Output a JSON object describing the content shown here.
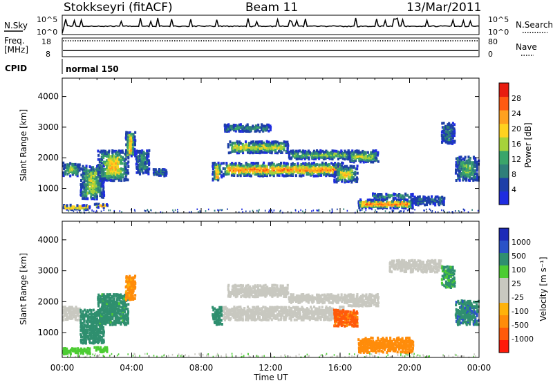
{
  "header": {
    "station": "Stokkseyri (fitACF)",
    "beam": "Beam 11",
    "date": "13/Mar/2011"
  },
  "status_panels": {
    "nsky_label": "N.Sky",
    "nsky_ticks": [
      "10^5",
      "10^0"
    ],
    "nsearch_label": "N.Search",
    "nsearch_ticks": [
      "10^5",
      "10^0"
    ],
    "freq_label": "Freq.",
    "freq_unit": "[MHz]",
    "freq_ticks": [
      "18",
      "8"
    ],
    "nave_label": "Nave",
    "nave_ticks": [
      "80",
      "0"
    ],
    "cpid_label": "CPID",
    "cpid_value": "normal 150"
  },
  "colors": {
    "power": [
      "#1f2de0",
      "#1d3fa8",
      "#2f7f7a",
      "#3aa56a",
      "#a6d23a",
      "#ffd21f",
      "#ffa11f",
      "#ff5a12",
      "#e81c10"
    ],
    "velocity": [
      "#ff1a0a",
      "#ff5a0a",
      "#ff8c0a",
      "#ffb20a",
      "#c8c8c0",
      "#c8c8c0",
      "#4ccc33",
      "#2f8f6f",
      "#2a52c8",
      "#1c2ab8"
    ]
  },
  "chart_data": [
    {
      "type": "heatmap",
      "panel": "power",
      "xlabel": "Time UT",
      "ylabel": "Slant Range [km]",
      "x_tick_labels": [
        "00:00",
        "04:00",
        "08:00",
        "12:00",
        "16:00",
        "20:00",
        "00:00"
      ],
      "xlim": [
        0,
        24
      ],
      "ylim": [
        200,
        4600
      ],
      "y_ticks": [
        1000,
        2000,
        3000,
        4000
      ],
      "colorbar_label": "Power [dB]",
      "colorbar_ticks": [
        "28",
        "24",
        "20",
        "16",
        "12",
        "8",
        "4"
      ],
      "colorbar_range": [
        0,
        32
      ],
      "regions": [
        {
          "t": [
            0.0,
            1.6
          ],
          "r": [
            350,
            520
          ],
          "v": 26
        },
        {
          "t": [
            1.8,
            2.6
          ],
          "r": [
            420,
            560
          ],
          "v": 22
        },
        {
          "t": [
            0.0,
            1.0
          ],
          "r": [
            1450,
            1900
          ],
          "v": 18
        },
        {
          "t": [
            1.0,
            2.4
          ],
          "r": [
            700,
            1800
          ],
          "v": 16
        },
        {
          "t": [
            2.0,
            3.8
          ],
          "r": [
            1300,
            2300
          ],
          "v": 20
        },
        {
          "t": [
            3.6,
            4.2
          ],
          "r": [
            2100,
            2900
          ],
          "v": 22
        },
        {
          "t": [
            4.2,
            5.0
          ],
          "r": [
            1500,
            2300
          ],
          "v": 10
        },
        {
          "t": [
            5.2,
            6.0
          ],
          "r": [
            1450,
            1700
          ],
          "v": 8
        },
        {
          "t": [
            8.6,
            9.2
          ],
          "r": [
            1300,
            1900
          ],
          "v": 22
        },
        {
          "t": [
            9.2,
            16.2
          ],
          "r": [
            1450,
            1900
          ],
          "v": 24
        },
        {
          "t": [
            9.5,
            13.0
          ],
          "r": [
            2200,
            2600
          ],
          "v": 18
        },
        {
          "t": [
            9.3,
            12.0
          ],
          "r": [
            2900,
            3150
          ],
          "v": 10
        },
        {
          "t": [
            13.0,
            16.6
          ],
          "r": [
            2000,
            2300
          ],
          "v": 14
        },
        {
          "t": [
            15.6,
            17.0
          ],
          "r": [
            1250,
            1800
          ],
          "v": 20
        },
        {
          "t": [
            16.4,
            18.2
          ],
          "r": [
            1900,
            2300
          ],
          "v": 16
        },
        {
          "t": [
            17.0,
            20.2
          ],
          "r": [
            400,
            700
          ],
          "v": 26
        },
        {
          "t": [
            17.8,
            20.2
          ],
          "r": [
            700,
            900
          ],
          "v": 12
        },
        {
          "t": [
            20.2,
            22.0
          ],
          "r": [
            500,
            800
          ],
          "v": 8
        },
        {
          "t": [
            21.8,
            22.6
          ],
          "r": [
            2500,
            3200
          ],
          "v": 8
        },
        {
          "t": [
            22.6,
            24.0
          ],
          "r": [
            1300,
            2100
          ],
          "v": 14
        }
      ]
    },
    {
      "type": "heatmap",
      "panel": "velocity",
      "xlabel": "Time UT",
      "ylabel": "Slant Range [km]",
      "x_tick_labels": [
        "00:00",
        "04:00",
        "08:00",
        "12:00",
        "16:00",
        "20:00",
        "00:00"
      ],
      "xlim": [
        0,
        24
      ],
      "ylim": [
        200,
        4600
      ],
      "y_ticks": [
        1000,
        2000,
        3000,
        4000
      ],
      "colorbar_label": "Velocity [m s⁻¹]",
      "colorbar_ticks": [
        "1000",
        "500",
        "100",
        "25",
        "-25",
        "-100",
        "-500",
        "-1000"
      ],
      "regions": [
        {
          "t": [
            0.0,
            1.6
          ],
          "r": [
            350,
            560
          ],
          "v": 60
        },
        {
          "t": [
            1.8,
            2.6
          ],
          "r": [
            420,
            600
          ],
          "v": 60
        },
        {
          "t": [
            0.0,
            1.0
          ],
          "r": [
            1450,
            1900
          ],
          "v": 0
        },
        {
          "t": [
            1.0,
            2.4
          ],
          "r": [
            700,
            1800
          ],
          "v": 200
        },
        {
          "t": [
            2.0,
            3.8
          ],
          "r": [
            1300,
            2300
          ],
          "v": 150
        },
        {
          "t": [
            3.6,
            4.2
          ],
          "r": [
            2100,
            2900
          ],
          "v": -150
        },
        {
          "t": [
            8.6,
            9.2
          ],
          "r": [
            1300,
            1900
          ],
          "v": 300
        },
        {
          "t": [
            9.2,
            16.2
          ],
          "r": [
            1450,
            1900
          ],
          "v": 0
        },
        {
          "t": [
            9.5,
            13.0
          ],
          "r": [
            2200,
            2600
          ],
          "v": 0
        },
        {
          "t": [
            13.0,
            16.6
          ],
          "r": [
            2000,
            2300
          ],
          "v": 0
        },
        {
          "t": [
            15.6,
            17.0
          ],
          "r": [
            1250,
            1800
          ],
          "v": -700
        },
        {
          "t": [
            16.4,
            18.2
          ],
          "r": [
            1900,
            2300
          ],
          "v": 0
        },
        {
          "t": [
            17.0,
            20.2
          ],
          "r": [
            400,
            900
          ],
          "v": -300
        },
        {
          "t": [
            18.8,
            21.8
          ],
          "r": [
            3000,
            3400
          ],
          "v": 0
        },
        {
          "t": [
            21.8,
            22.6
          ],
          "r": [
            2500,
            3200
          ],
          "v": 120
        },
        {
          "t": [
            22.6,
            24.0
          ],
          "r": [
            1300,
            2100
          ],
          "v": 400
        }
      ]
    }
  ]
}
